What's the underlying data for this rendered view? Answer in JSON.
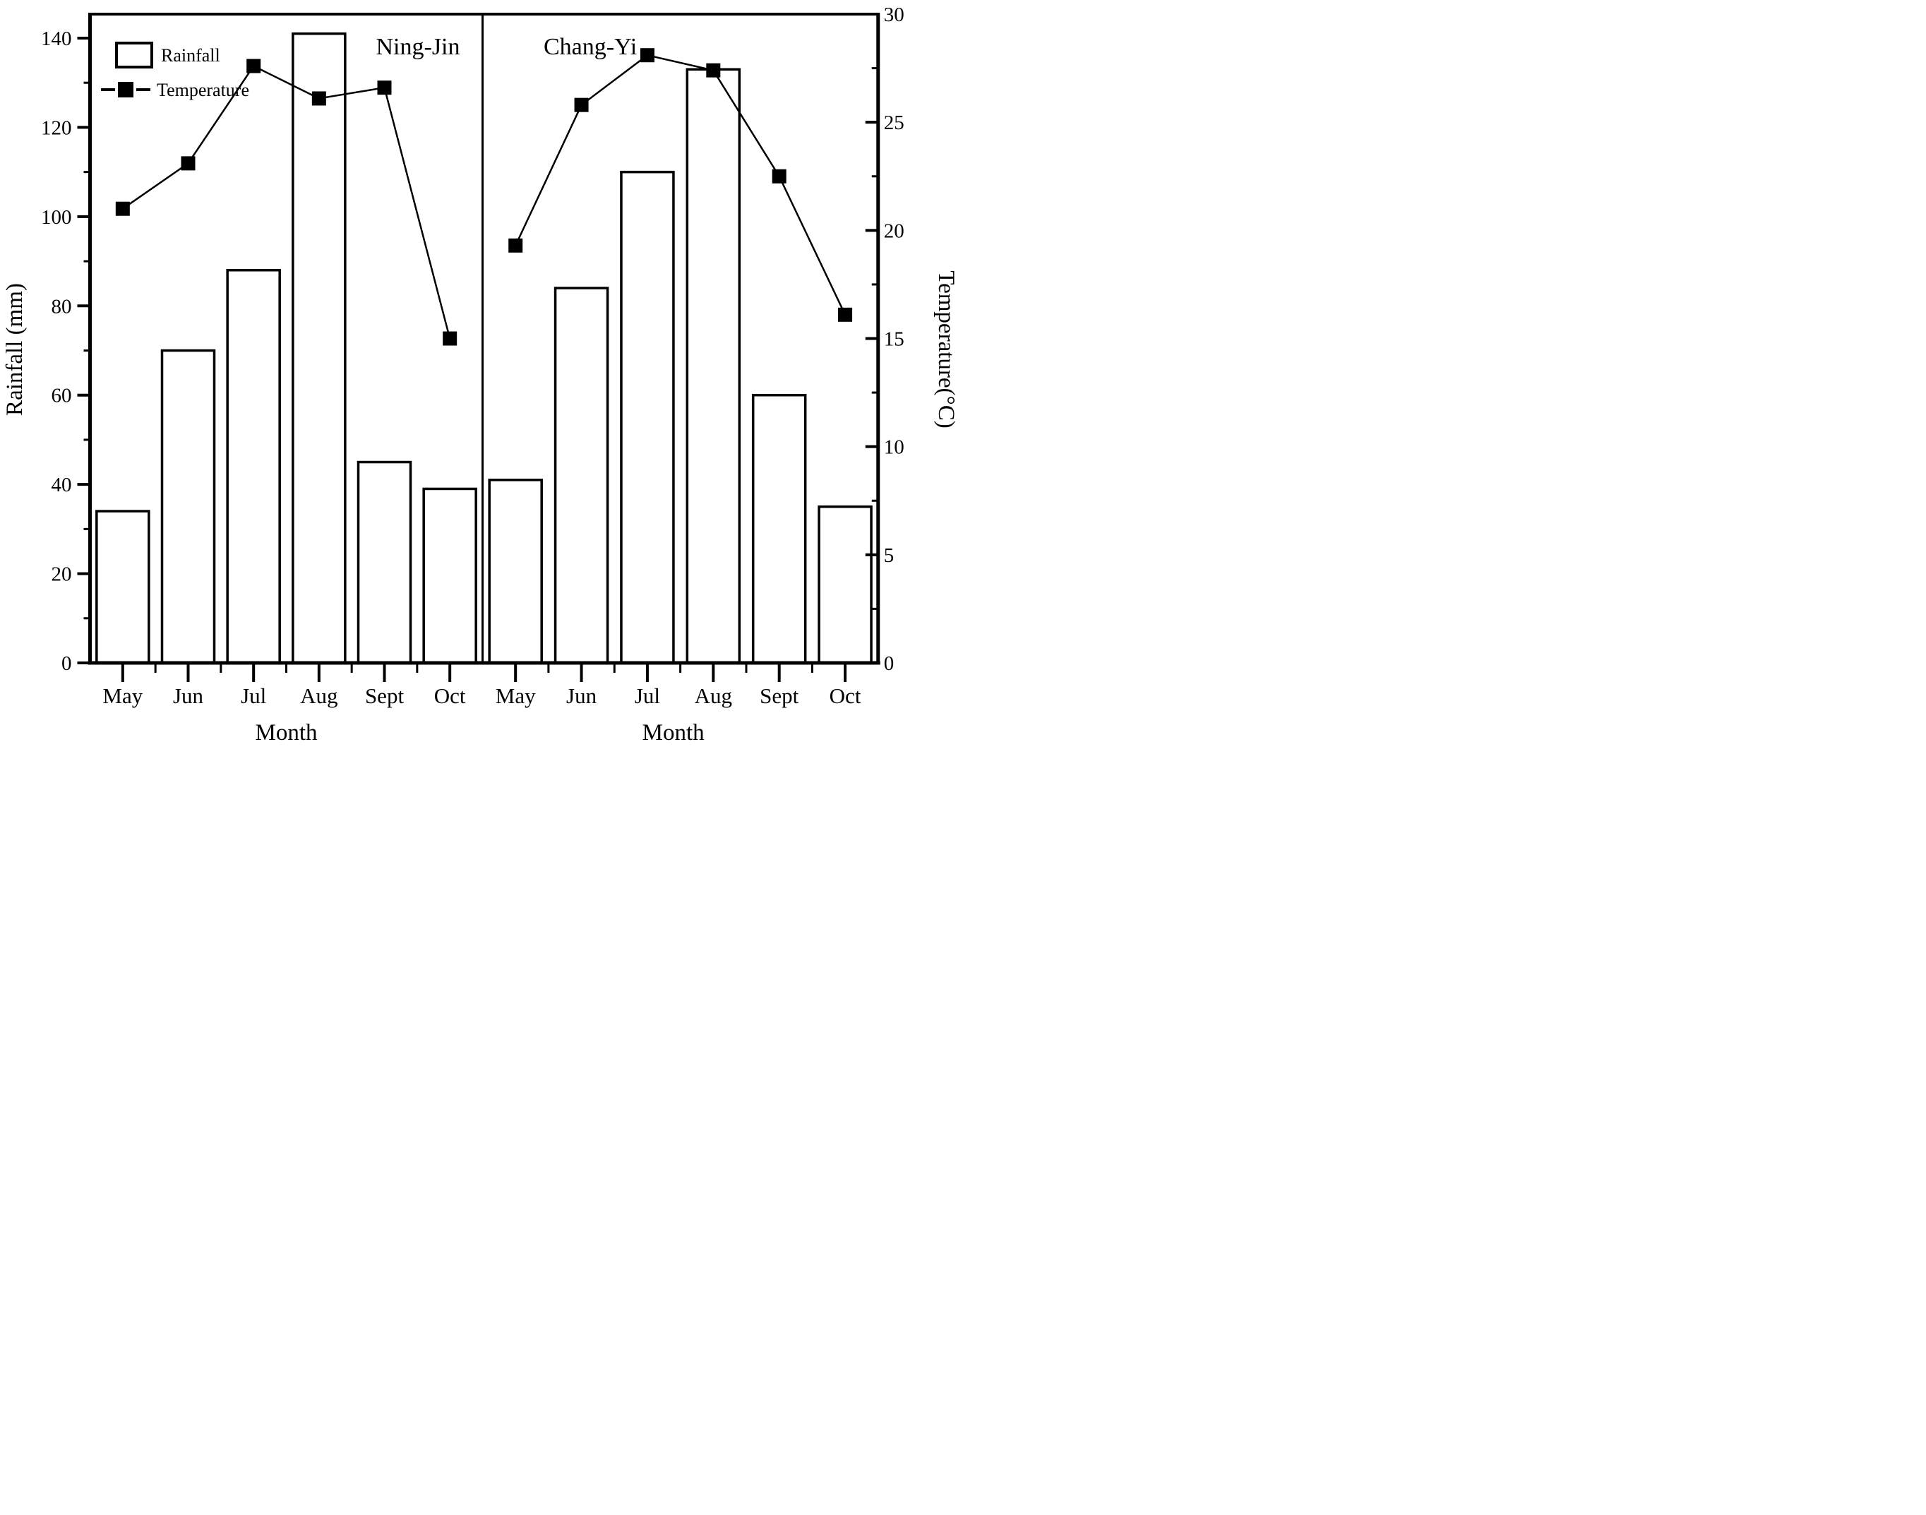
{
  "chart_meta": {
    "left_axis_title": "Rainfall (mm)",
    "right_axis_title": "Temperature(°C)",
    "x_axis_title": "Month",
    "months": [
      "May",
      "Jun",
      "Jul",
      "Aug",
      "Sept",
      "Oct"
    ],
    "left_axis": {
      "min": 0,
      "max": 145,
      "major_ticks": [
        0,
        20,
        40,
        60,
        80,
        100,
        120,
        140
      ],
      "minor_ticks": [
        10,
        30,
        50,
        70,
        90,
        110,
        130
      ],
      "unit": "mm"
    },
    "right_axis": {
      "min": 0,
      "max": 30,
      "major_ticks": [
        0,
        5,
        10,
        15,
        20,
        25,
        30
      ],
      "minor_ticks": [
        2.5,
        7.5,
        12.5,
        17.5,
        22.5,
        27.5
      ],
      "unit": "°C"
    },
    "legend": {
      "rainfall_label": "Rainfall",
      "temperature_label": "Temperature"
    },
    "colors": {
      "foreground": "#000000",
      "background": "#ffffff",
      "bar_fill": "#ffffff",
      "marker": "#000000"
    },
    "grid": "off",
    "legend_position": "top-left"
  },
  "chart_data": [
    {
      "panel_label": "Ning-Jin",
      "type": "bar+line",
      "categories": [
        "May",
        "Jun",
        "Jul",
        "Aug",
        "Sept",
        "Oct"
      ],
      "series": [
        {
          "name": "Rainfall",
          "type": "bar",
          "axis": "left",
          "unit": "mm",
          "values": [
            34,
            70,
            88,
            141,
            45,
            39
          ]
        },
        {
          "name": "Temperature",
          "type": "line",
          "axis": "right",
          "unit": "°C",
          "values": [
            21.0,
            23.1,
            27.6,
            26.1,
            26.6,
            15.0
          ]
        }
      ]
    },
    {
      "panel_label": "Chang-Yi",
      "type": "bar+line",
      "categories": [
        "May",
        "Jun",
        "Jul",
        "Aug",
        "Sept",
        "Oct"
      ],
      "series": [
        {
          "name": "Rainfall",
          "type": "bar",
          "axis": "left",
          "unit": "mm",
          "values": [
            41,
            84,
            110,
            133,
            60,
            35
          ]
        },
        {
          "name": "Temperature",
          "type": "line",
          "axis": "right",
          "unit": "°C",
          "values": [
            19.3,
            25.8,
            28.1,
            27.4,
            22.5,
            16.1
          ]
        }
      ]
    }
  ]
}
